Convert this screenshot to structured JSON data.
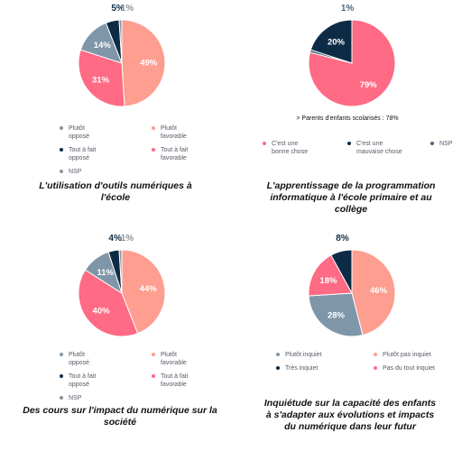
{
  "colors": {
    "plutot_defav": "#7f96a8",
    "plutot_fav": "#fe9e90",
    "tout_defav": "#0d2b45",
    "tout_fav": "#ff6a84",
    "nsp": "#8a959c",
    "bonne_chose": "#ff6a84",
    "mauvaise_chose": "#0d2b45",
    "nsp2": "#4f6577",
    "inquiet": "#7f96a8",
    "pas_inquiet": "#fe9e90",
    "tres_inquiet": "#0d2b45",
    "pas_du_tout": "#ff6a84"
  },
  "chart_data": [
    {
      "type": "pie",
      "title": "L'utilisation d'outils numériques à l'école",
      "slices": [
        {
          "name": "Plutôt favorable",
          "value": 49,
          "label": "49%",
          "color": "#fe9e90"
        },
        {
          "name": "Tout à fait favorable",
          "value": 31,
          "label": "31%",
          "color": "#ff6a84"
        },
        {
          "name": "Plutôt opposé",
          "value": 14,
          "label": "14%",
          "color": "#7f96a8"
        },
        {
          "name": "Tout à fait opposé",
          "value": 5,
          "label": "5%",
          "color": "#0d2b45"
        },
        {
          "name": "NSP",
          "value": 1,
          "label": "1%",
          "color": "#8a959c"
        }
      ],
      "legend": [
        "Plutôt\nopposé",
        "Plutôt\nfavorable",
        "Tout à fait\nopposé",
        "Tout à fait\nfavorable",
        "NSP"
      ]
    },
    {
      "type": "pie",
      "title": "L'apprentissage de la programmation informatique à l'école primaire et au collège",
      "subtitle": "> Parents d'enfants scolarisés : 78%",
      "slices": [
        {
          "name": "C'est une bonne chose",
          "value": 79,
          "label": "79%",
          "color": "#ff6a84"
        },
        {
          "name": "NSP",
          "value": 1,
          "label": "1%",
          "color": "#4f6577"
        },
        {
          "name": "C'est une mauvaise chose",
          "value": 20,
          "label": "20%",
          "color": "#0d2b45"
        }
      ],
      "legend": [
        "C'est une\nbonne chose",
        "C'est une\nmauvaise chose",
        "NSP"
      ]
    },
    {
      "type": "pie",
      "title": "Des cours sur l'impact du numérique sur la société",
      "slices": [
        {
          "name": "Plutôt favorable",
          "value": 44,
          "label": "44%",
          "color": "#fe9e90"
        },
        {
          "name": "Tout à fait favorable",
          "value": 40,
          "label": "40%",
          "color": "#ff6a84"
        },
        {
          "name": "Plutôt opposé",
          "value": 11,
          "label": "11%",
          "color": "#7f96a8"
        },
        {
          "name": "Tout à fait opposé",
          "value": 4,
          "label": "4%",
          "color": "#0d2b45"
        },
        {
          "name": "NSP",
          "value": 1,
          "label": "1%",
          "color": "#8a959c"
        }
      ],
      "legend": [
        "Plutôt\nopposé",
        "Plutôt\nfavorable",
        "Tout à fait\nopposé",
        "Tout à fait\nfavorable",
        "NSP"
      ]
    },
    {
      "type": "pie",
      "title": "Inquiétude sur la capacité des enfants à s'adapter aux évolutions et impacts du numérique dans leur futur",
      "slices": [
        {
          "name": "Plutôt pas inquiet",
          "value": 46,
          "label": "46%",
          "color": "#fe9e90"
        },
        {
          "name": "Plutôt inquiet",
          "value": 28,
          "label": "28%",
          "color": "#7f96a8"
        },
        {
          "name": "Pas du tout inquiet",
          "value": 18,
          "label": "18%",
          "color": "#ff6a84"
        },
        {
          "name": "Très inquiet",
          "value": 8,
          "label": "8%",
          "color": "#0d2b45"
        }
      ],
      "legend": [
        "Plutôt inquiet",
        "Plutôt pas inquiet",
        "Très inquiet",
        "Pas du tout inquiet"
      ]
    }
  ]
}
